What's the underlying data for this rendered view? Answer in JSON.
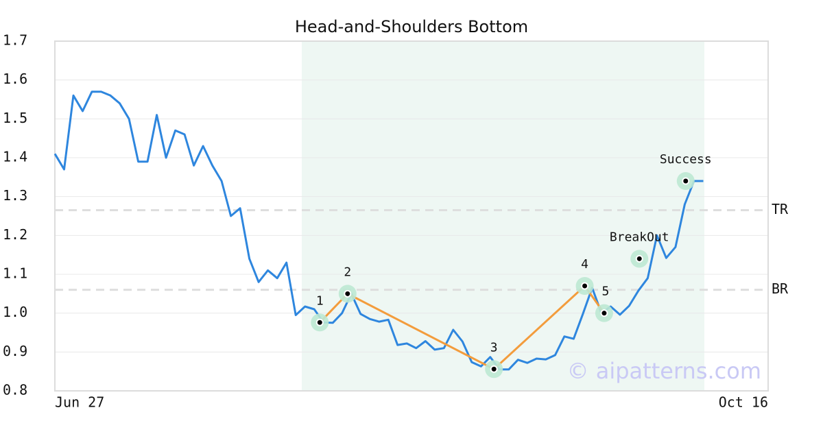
{
  "chart_data": {
    "type": "line",
    "title": "Head-and-Shoulders Bottom",
    "categories": [
      "Jun 27",
      null,
      null,
      null,
      null,
      null,
      null,
      null,
      null,
      null,
      null,
      null,
      null,
      null,
      null,
      null,
      null,
      null,
      null,
      null,
      null,
      null,
      null,
      null,
      null,
      null,
      null,
      null,
      null,
      null,
      null,
      null,
      null,
      null,
      null,
      null,
      null,
      null,
      null,
      null,
      null,
      null,
      null,
      null,
      null,
      null,
      null,
      null,
      null,
      null,
      null,
      null,
      null,
      null,
      null,
      null,
      null,
      null,
      null,
      null,
      null,
      null,
      null,
      null,
      null,
      null,
      null,
      null,
      null,
      null,
      null,
      null,
      null,
      null,
      null,
      null,
      null,
      "Oct 16"
    ],
    "series": [
      {
        "color": "#2e86de",
        "values": [
          1.41,
          1.37,
          1.56,
          1.52,
          1.57,
          1.57,
          1.56,
          1.54,
          1.5,
          1.39,
          1.39,
          1.51,
          1.4,
          1.47,
          1.46,
          1.38,
          1.43,
          1.38,
          1.34,
          1.25,
          1.27,
          1.14,
          1.08,
          1.11,
          1.09,
          1.13,
          0.995,
          1.017,
          1.01,
          0.976,
          0.975,
          1.0,
          1.05,
          0.998,
          0.985,
          0.978,
          0.983,
          0.918,
          0.922,
          0.91,
          0.928,
          0.906,
          0.91,
          0.957,
          0.927,
          0.874,
          0.863,
          0.887,
          0.855,
          0.855,
          0.88,
          0.872,
          0.883,
          0.881,
          0.892,
          0.94,
          0.934,
          0.998,
          1.065,
          1.0,
          1.017,
          0.996,
          1.019,
          1.058,
          1.09,
          1.2,
          1.142,
          1.17,
          1.28,
          1.34,
          1.34,
          null,
          null,
          null,
          null,
          null,
          null,
          null
        ]
      }
    ],
    "pattern": {
      "color": "#f39c3c",
      "points": [
        {
          "label": "1",
          "x": 28.6,
          "value": 0.976,
          "connected": true
        },
        {
          "label": "2",
          "x": 31.6,
          "value": 1.05,
          "connected": true
        },
        {
          "label": "3",
          "x": 47.4,
          "value": 0.856,
          "connected": true
        },
        {
          "label": "4",
          "x": 57.2,
          "value": 1.07,
          "connected": true
        },
        {
          "label": "5",
          "x": 59.3,
          "value": 1.0,
          "connected": true
        },
        {
          "label": "BreakOut",
          "x": 63.1,
          "value": 1.14,
          "connected": false
        },
        {
          "label": "Success",
          "x": 68.1,
          "value": 1.34,
          "connected": false
        }
      ]
    },
    "levels": [
      {
        "label": "TR",
        "value": 1.265
      },
      {
        "label": "BR",
        "value": 1.06
      }
    ],
    "ylim": [
      0.8,
      1.7
    ],
    "yticks": [
      0.8,
      0.9,
      {
        "value": 1,
        "label": "1.0"
      },
      1.1,
      1.2,
      1.3,
      1.4,
      1.5,
      1.6,
      1.7
    ],
    "grid": true,
    "watermark": "© aipatterns.com"
  }
}
